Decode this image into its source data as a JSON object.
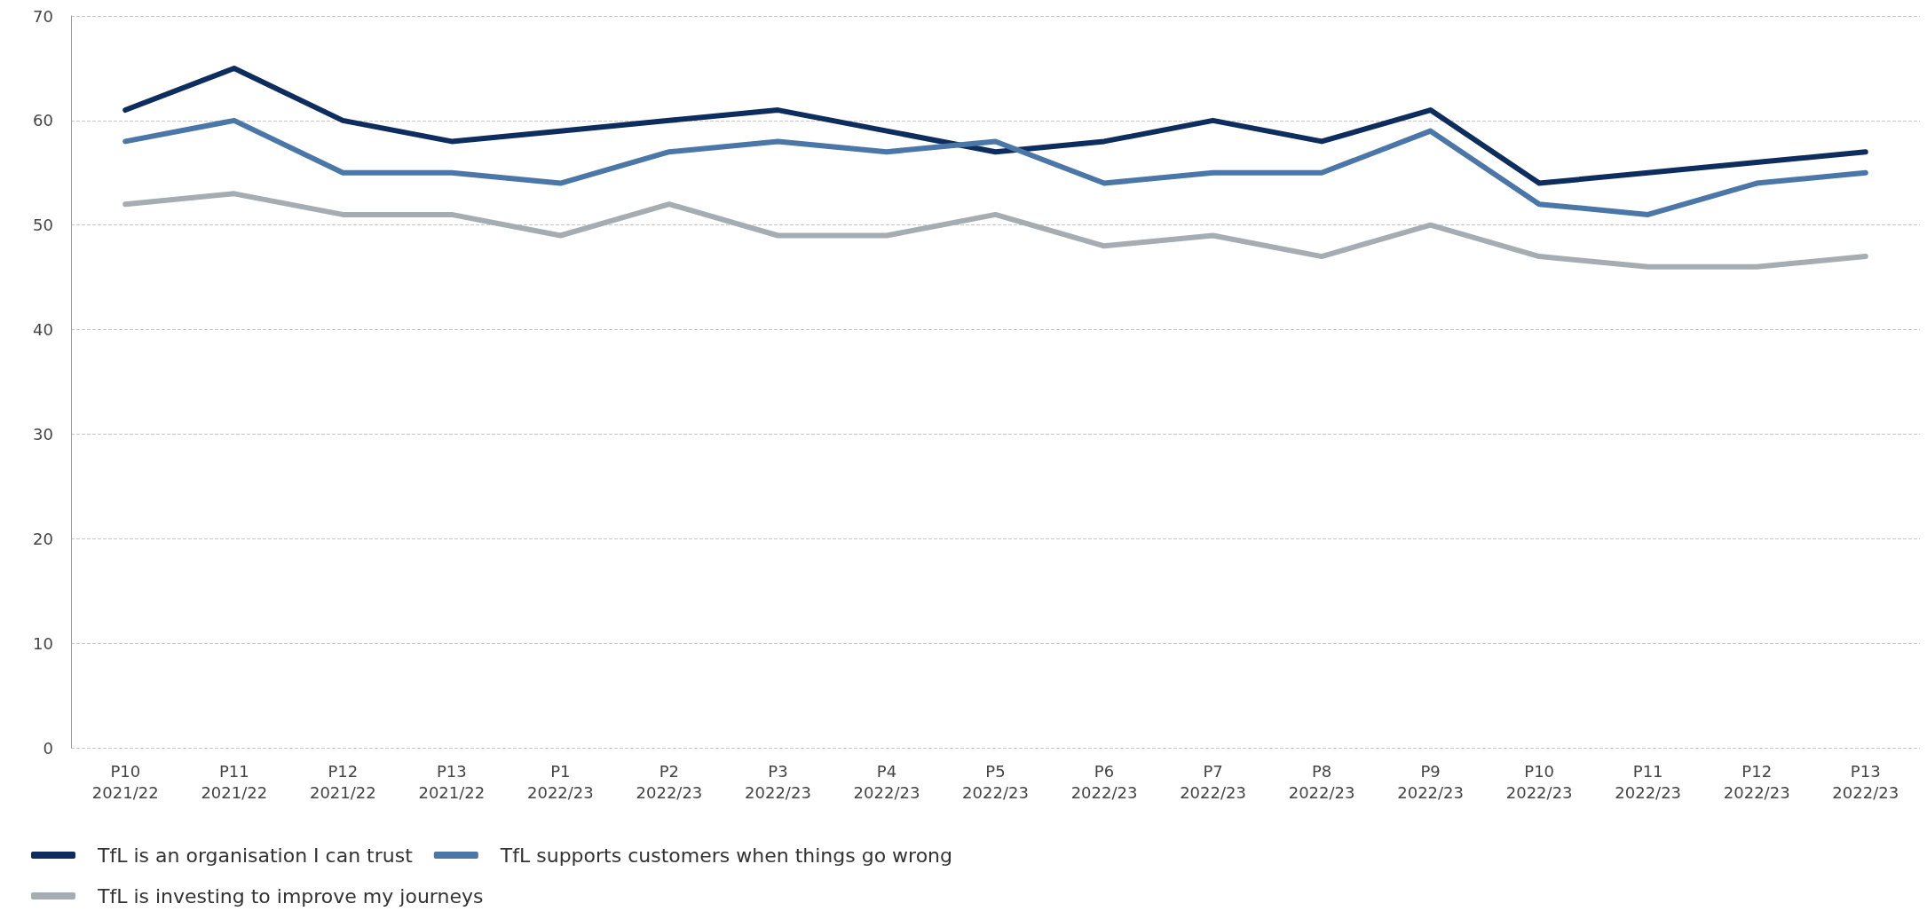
{
  "chart_data": {
    "type": "line",
    "categories": [
      "P10\n2021/22",
      "P11\n2021/22",
      "P12\n2021/22",
      "P13\n2021/22",
      "P1\n2022/23",
      "P2\n2022/23",
      "P3\n2022/23",
      "P4\n2022/23",
      "P5\n2022/23",
      "P6\n2022/23",
      "P7\n2022/23",
      "P8\n2022/23",
      "P9\n2022/23",
      "P10\n2022/23",
      "P11\n2022/23",
      "P12\n2022/23",
      "P13\n2022/23"
    ],
    "series": [
      {
        "name": "TfL is an organisation I can trust",
        "color": "#0d2d5e",
        "values": [
          61,
          65,
          60,
          58,
          59,
          60,
          61,
          59,
          57,
          58,
          60,
          58,
          61,
          54,
          55,
          56,
          57
        ]
      },
      {
        "name": "TfL supports customers when things go wrong",
        "color": "#4a76a8",
        "values": [
          58,
          60,
          55,
          55,
          54,
          57,
          58,
          57,
          58,
          54,
          55,
          55,
          59,
          52,
          51,
          54,
          55
        ]
      },
      {
        "name": "TfL is investing to improve my journeys",
        "color": "#a5adb2",
        "values": [
          52,
          53,
          51,
          51,
          49,
          52,
          49,
          49,
          51,
          48,
          49,
          47,
          50,
          47,
          46,
          46,
          47
        ]
      }
    ],
    "ylim": [
      0,
      70
    ],
    "yticks": [
      0,
      10,
      20,
      30,
      40,
      50,
      60,
      70
    ],
    "grid": "y",
    "legend": "bottom left",
    "marker": "none",
    "line_style": "solid"
  }
}
